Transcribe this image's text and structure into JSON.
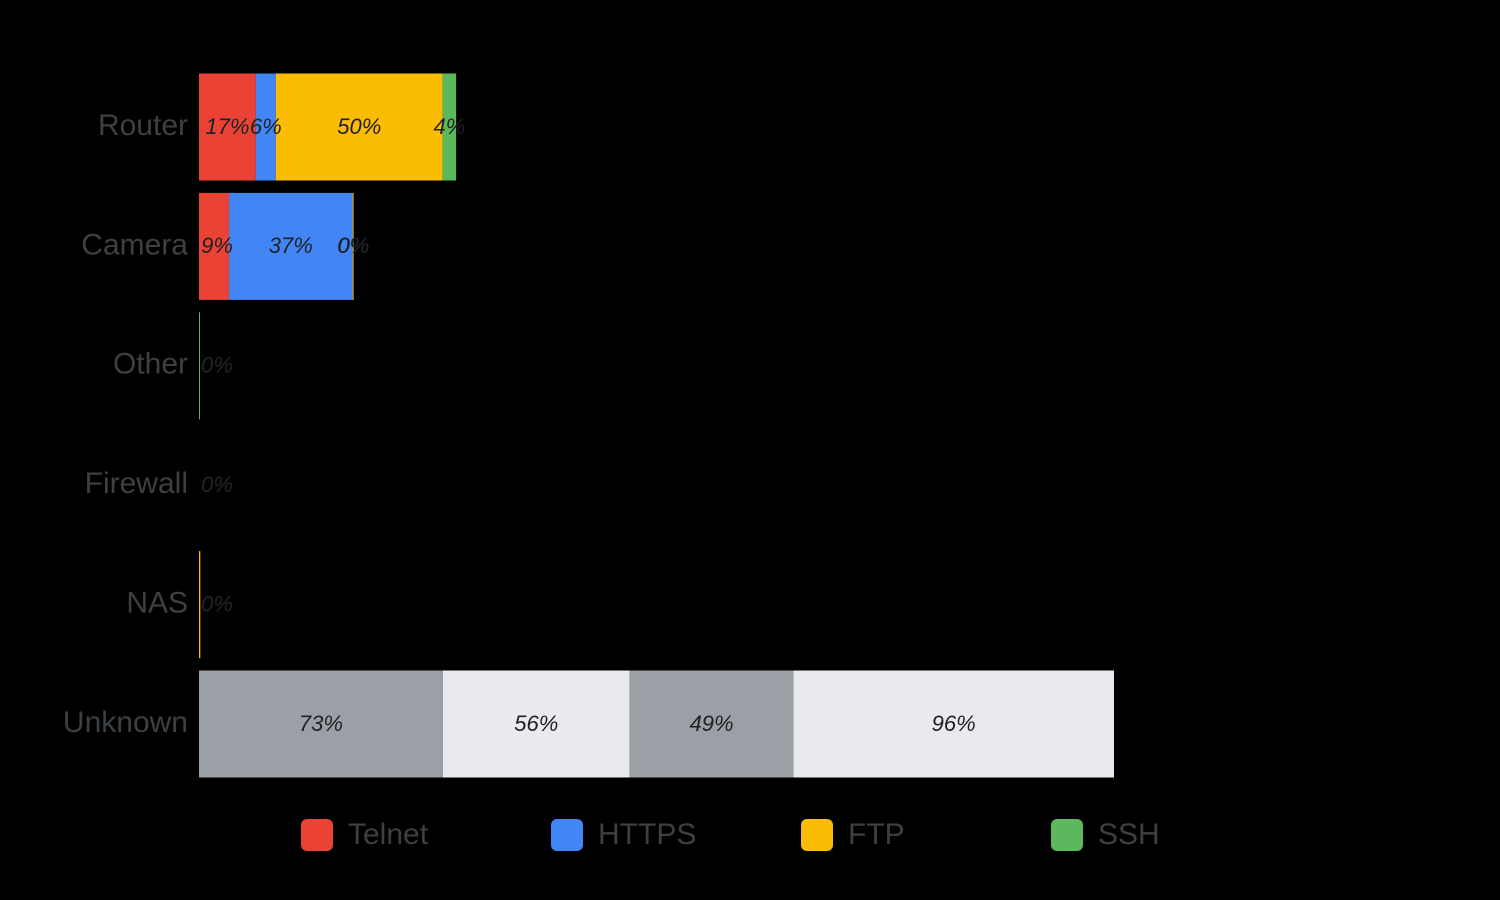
{
  "chart_data": {
    "type": "stacked-bar-horizontal",
    "categories": [
      "Router",
      "Camera",
      "Other",
      "Firewall",
      "NAS",
      "Unknown"
    ],
    "series": [
      {
        "name": "Telnet",
        "color": "#ea4335",
        "colors": [
          "#ea4335",
          "#ea4335",
          "#ea4335",
          "#ea4335",
          "#ea4335",
          "#9aa0a6"
        ],
        "values": [
          17,
          9,
          0,
          0,
          0,
          73
        ],
        "value_labels": [
          "17%",
          "9%",
          "0%",
          "0%",
          "0%",
          "73%"
        ]
      },
      {
        "name": "HTTPS",
        "color": "#4285f4",
        "colors": [
          "#4285f4",
          "#4285f4",
          "#4285f4",
          "#4285f4",
          "#4285f4",
          "#e8eaed"
        ],
        "values": [
          6,
          37,
          0,
          0,
          0,
          56
        ],
        "value_labels": [
          "6%",
          "37%",
          "0%",
          "0%",
          "0%",
          "56%"
        ]
      },
      {
        "name": "FTP",
        "color": "#fbbc04",
        "colors": [
          "#fbbc04",
          "#fbbc04",
          "#fbbc04",
          "#fbbc04",
          "#fbbc04",
          "#9aa0a6"
        ],
        "values": [
          50,
          0.3,
          0,
          0,
          0.4,
          49
        ],
        "value_labels": [
          "50%",
          "0%",
          "0%",
          "0%",
          "0%",
          "49%"
        ]
      },
      {
        "name": "SSH",
        "color": "#5bb85d",
        "colors": [
          "#5bb85d",
          "#5bb85d",
          "#5bb85d",
          "#5bb85d",
          "#5bb85d",
          "#e8eaed"
        ],
        "values": [
          4,
          0,
          0.3,
          0,
          0,
          96
        ],
        "value_labels": [
          "4%",
          "0%",
          "0%",
          "0%",
          "0%",
          "96%"
        ]
      }
    ]
  }
}
